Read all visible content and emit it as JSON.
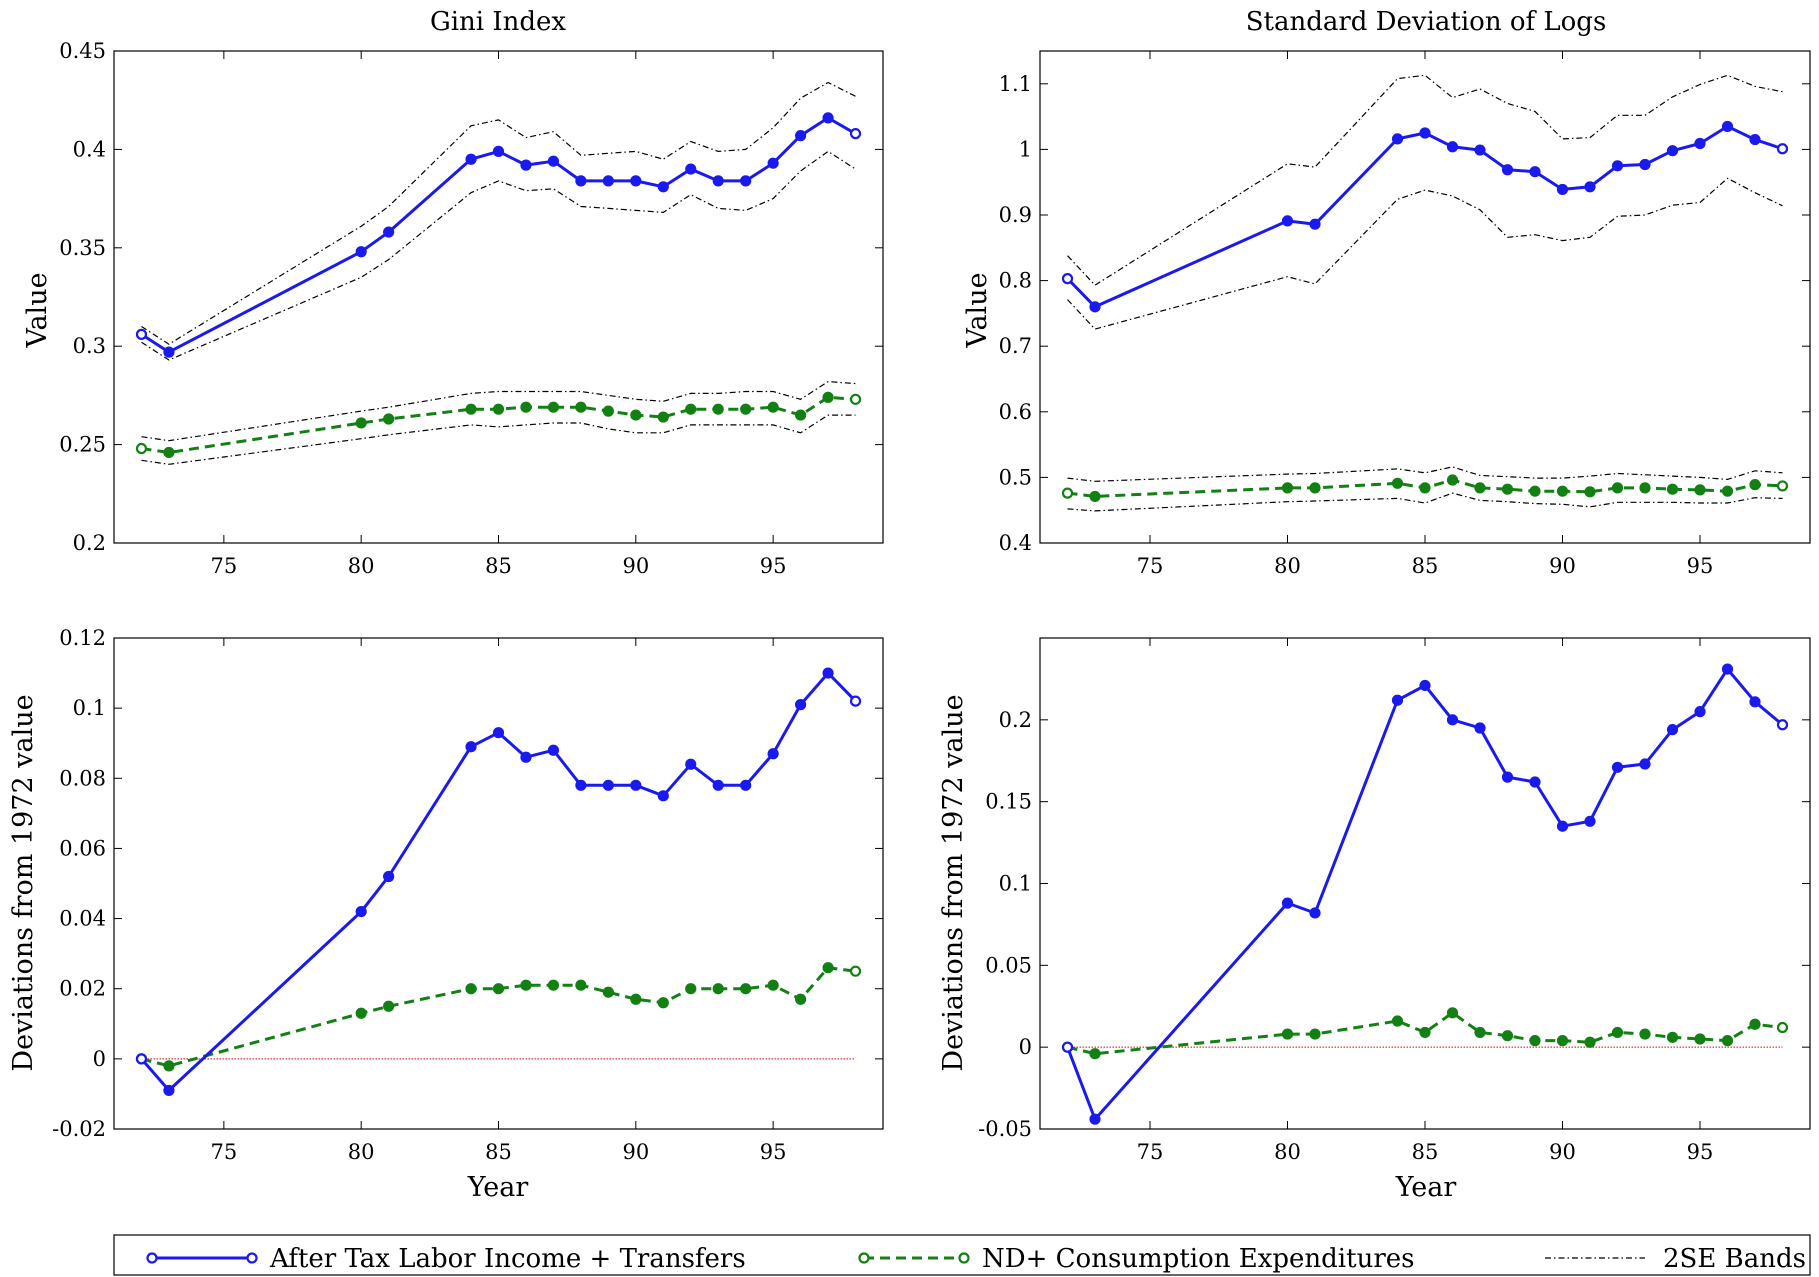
{
  "colors": {
    "income": "#1a1aee",
    "consumption": "#128012",
    "bands": "#000000",
    "zero_line": "#dd0000"
  },
  "legend": {
    "income": "After Tax Labor Income + Transfers",
    "consumption": "ND+ Consumption Expenditures",
    "bands": "2SE Bands"
  },
  "chart_data": [
    {
      "type": "line",
      "title": "Gini Index",
      "xlabel": "",
      "ylabel": "Value",
      "xlim": [
        71,
        99
      ],
      "ylim": [
        0.2,
        0.45
      ],
      "xticks": [
        75,
        80,
        85,
        90,
        95
      ],
      "xtick_labels": [
        "75",
        "80",
        "85",
        "90",
        "95"
      ],
      "yticks": [
        0.2,
        0.25,
        0.3,
        0.35,
        0.4,
        0.45
      ],
      "ytick_labels": [
        "0.2",
        "0.25",
        "0.3",
        "0.35",
        "0.4",
        "0.45"
      ],
      "series": [
        {
          "name": "After Tax Labor Income + Transfers",
          "key": "income",
          "x": [
            72,
            73,
            80,
            81,
            84,
            85,
            86,
            87,
            88,
            89,
            90,
            91,
            92,
            93,
            94,
            95,
            96,
            97,
            98
          ],
          "values": [
            0.306,
            0.297,
            0.348,
            0.358,
            0.395,
            0.399,
            0.392,
            0.394,
            0.384,
            0.384,
            0.384,
            0.381,
            0.39,
            0.384,
            0.384,
            0.393,
            0.407,
            0.416,
            0.408
          ]
        },
        {
          "name": "ND+ Consumption Expenditures",
          "key": "consumption",
          "x": [
            72,
            73,
            80,
            81,
            84,
            85,
            86,
            87,
            88,
            89,
            90,
            91,
            92,
            93,
            94,
            95,
            96,
            97,
            98
          ],
          "values": [
            0.248,
            0.246,
            0.261,
            0.263,
            0.268,
            0.268,
            0.269,
            0.269,
            0.269,
            0.267,
            0.265,
            0.264,
            0.268,
            0.268,
            0.268,
            0.269,
            0.265,
            0.274,
            0.273
          ]
        },
        {
          "name": "2SE Bands",
          "key": "bands",
          "role": "upper-income",
          "x": [
            72,
            73,
            80,
            81,
            84,
            85,
            86,
            87,
            88,
            89,
            90,
            91,
            92,
            93,
            94,
            95,
            96,
            97,
            98
          ],
          "values": [
            0.31,
            0.301,
            0.361,
            0.371,
            0.412,
            0.415,
            0.406,
            0.409,
            0.397,
            0.398,
            0.399,
            0.395,
            0.404,
            0.399,
            0.4,
            0.411,
            0.426,
            0.434,
            0.427
          ]
        },
        {
          "name": "2SE Bands",
          "key": "bands",
          "role": "lower-income",
          "x": [
            72,
            73,
            80,
            81,
            84,
            85,
            86,
            87,
            88,
            89,
            90,
            91,
            92,
            93,
            94,
            95,
            96,
            97,
            98
          ],
          "values": [
            0.302,
            0.293,
            0.335,
            0.344,
            0.378,
            0.384,
            0.379,
            0.38,
            0.371,
            0.37,
            0.369,
            0.368,
            0.377,
            0.37,
            0.369,
            0.375,
            0.389,
            0.399,
            0.39
          ]
        },
        {
          "name": "2SE Bands",
          "key": "bands",
          "role": "upper-consumption",
          "x": [
            72,
            73,
            80,
            81,
            84,
            85,
            86,
            87,
            88,
            89,
            90,
            91,
            92,
            93,
            94,
            95,
            96,
            97,
            98
          ],
          "values": [
            0.254,
            0.252,
            0.267,
            0.269,
            0.276,
            0.277,
            0.277,
            0.277,
            0.277,
            0.275,
            0.273,
            0.272,
            0.276,
            0.276,
            0.277,
            0.277,
            0.273,
            0.282,
            0.281
          ]
        },
        {
          "name": "2SE Bands",
          "key": "bands",
          "role": "lower-consumption",
          "x": [
            72,
            73,
            80,
            81,
            84,
            85,
            86,
            87,
            88,
            89,
            90,
            91,
            92,
            93,
            94,
            95,
            96,
            97,
            98
          ],
          "values": [
            0.242,
            0.24,
            0.253,
            0.255,
            0.26,
            0.259,
            0.26,
            0.261,
            0.261,
            0.258,
            0.256,
            0.256,
            0.26,
            0.26,
            0.26,
            0.26,
            0.256,
            0.265,
            0.265
          ]
        }
      ]
    },
    {
      "type": "line",
      "title": "Standard Deviation of Logs",
      "xlabel": "",
      "ylabel": "Value",
      "xlim": [
        71,
        99
      ],
      "ylim": [
        0.4,
        1.15
      ],
      "xticks": [
        75,
        80,
        85,
        90,
        95
      ],
      "xtick_labels": [
        "75",
        "80",
        "85",
        "90",
        "95"
      ],
      "yticks": [
        0.4,
        0.5,
        0.6,
        0.7,
        0.8,
        0.9,
        1.0,
        1.1
      ],
      "ytick_labels": [
        "0.4",
        "0.5",
        "0.6",
        "0.7",
        "0.8",
        "0.9",
        "1",
        "1.1"
      ],
      "series": [
        {
          "name": "After Tax Labor Income + Transfers",
          "key": "income",
          "x": [
            72,
            73,
            80,
            81,
            84,
            85,
            86,
            87,
            88,
            89,
            90,
            91,
            92,
            93,
            94,
            95,
            96,
            97,
            98
          ],
          "values": [
            0.803,
            0.76,
            0.891,
            0.886,
            1.016,
            1.025,
            1.004,
            0.999,
            0.969,
            0.966,
            0.939,
            0.943,
            0.975,
            0.977,
            0.998,
            1.009,
            1.035,
            1.015,
            1.001
          ]
        },
        {
          "name": "ND+ Consumption Expenditures",
          "key": "consumption",
          "x": [
            72,
            73,
            80,
            81,
            84,
            85,
            86,
            87,
            88,
            89,
            90,
            91,
            92,
            93,
            94,
            95,
            96,
            97,
            98
          ],
          "values": [
            0.476,
            0.471,
            0.484,
            0.484,
            0.491,
            0.484,
            0.496,
            0.484,
            0.482,
            0.479,
            0.479,
            0.478,
            0.484,
            0.484,
            0.482,
            0.481,
            0.479,
            0.489,
            0.487
          ]
        },
        {
          "name": "2SE Bands",
          "key": "bands",
          "role": "upper-income",
          "x": [
            72,
            73,
            80,
            81,
            84,
            85,
            86,
            87,
            88,
            89,
            90,
            91,
            92,
            93,
            94,
            95,
            96,
            97,
            98
          ],
          "values": [
            0.838,
            0.793,
            0.978,
            0.973,
            1.108,
            1.113,
            1.079,
            1.092,
            1.07,
            1.058,
            1.016,
            1.018,
            1.052,
            1.052,
            1.08,
            1.099,
            1.113,
            1.096,
            1.088
          ]
        },
        {
          "name": "2SE Bands",
          "key": "bands",
          "role": "lower-income",
          "x": [
            72,
            73,
            80,
            81,
            84,
            85,
            86,
            87,
            88,
            89,
            90,
            91,
            92,
            93,
            94,
            95,
            96,
            97,
            98
          ],
          "values": [
            0.771,
            0.726,
            0.806,
            0.795,
            0.924,
            0.938,
            0.929,
            0.908,
            0.866,
            0.87,
            0.861,
            0.866,
            0.898,
            0.9,
            0.915,
            0.919,
            0.956,
            0.934,
            0.914
          ]
        },
        {
          "name": "2SE Bands",
          "key": "bands",
          "role": "upper-consumption",
          "x": [
            72,
            73,
            80,
            81,
            84,
            85,
            86,
            87,
            88,
            89,
            90,
            91,
            92,
            93,
            94,
            95,
            96,
            97,
            98
          ],
          "values": [
            0.499,
            0.494,
            0.505,
            0.506,
            0.513,
            0.507,
            0.516,
            0.503,
            0.501,
            0.499,
            0.499,
            0.502,
            0.506,
            0.504,
            0.502,
            0.5,
            0.497,
            0.51,
            0.507
          ]
        },
        {
          "name": "2SE Bands",
          "key": "bands",
          "role": "lower-consumption",
          "x": [
            72,
            73,
            80,
            81,
            84,
            85,
            86,
            87,
            88,
            89,
            90,
            91,
            92,
            93,
            94,
            95,
            96,
            97,
            98
          ],
          "values": [
            0.452,
            0.449,
            0.463,
            0.464,
            0.468,
            0.461,
            0.476,
            0.465,
            0.463,
            0.46,
            0.459,
            0.455,
            0.462,
            0.462,
            0.462,
            0.461,
            0.461,
            0.469,
            0.468
          ]
        }
      ]
    },
    {
      "type": "line",
      "title": "",
      "xlabel": "Year",
      "ylabel": "Deviations from 1972 value",
      "xlim": [
        71,
        99
      ],
      "ylim": [
        -0.02,
        0.12
      ],
      "xticks": [
        75,
        80,
        85,
        90,
        95
      ],
      "xtick_labels": [
        "75",
        "80",
        "85",
        "90",
        "95"
      ],
      "yticks": [
        -0.02,
        0,
        0.02,
        0.04,
        0.06,
        0.08,
        0.1,
        0.12
      ],
      "ytick_labels": [
        "-0.02",
        "0",
        "0.02",
        "0.04",
        "0.06",
        "0.08",
        "0.1",
        "0.12"
      ],
      "zero_line": {
        "x": [
          72,
          98
        ],
        "y": 0
      },
      "series": [
        {
          "name": "After Tax Labor Income + Transfers",
          "key": "income",
          "x": [
            72,
            73,
            80,
            81,
            84,
            85,
            86,
            87,
            88,
            89,
            90,
            91,
            92,
            93,
            94,
            95,
            96,
            97,
            98
          ],
          "values": [
            0,
            -0.009,
            0.042,
            0.052,
            0.089,
            0.093,
            0.086,
            0.088,
            0.078,
            0.078,
            0.078,
            0.075,
            0.084,
            0.078,
            0.078,
            0.087,
            0.101,
            0.11,
            0.102
          ]
        },
        {
          "name": "ND+ Consumption Expenditures",
          "key": "consumption",
          "x": [
            72,
            73,
            80,
            81,
            84,
            85,
            86,
            87,
            88,
            89,
            90,
            91,
            92,
            93,
            94,
            95,
            96,
            97,
            98
          ],
          "values": [
            0,
            -0.002,
            0.013,
            0.015,
            0.02,
            0.02,
            0.021,
            0.021,
            0.021,
            0.019,
            0.017,
            0.016,
            0.02,
            0.02,
            0.02,
            0.021,
            0.017,
            0.026,
            0.025
          ]
        }
      ]
    },
    {
      "type": "line",
      "title": "",
      "xlabel": "Year",
      "ylabel": "Deviations from 1972 value",
      "xlim": [
        71,
        99
      ],
      "ylim": [
        -0.05,
        0.25
      ],
      "xticks": [
        75,
        80,
        85,
        90,
        95
      ],
      "xtick_labels": [
        "75",
        "80",
        "85",
        "90",
        "95"
      ],
      "yticks": [
        -0.05,
        0,
        0.05,
        0.1,
        0.15,
        0.2
      ],
      "ytick_labels": [
        "-0.05",
        "0",
        "0.05",
        "0.1",
        "0.15",
        "0.2"
      ],
      "zero_line": {
        "x": [
          72,
          98
        ],
        "y": 0
      },
      "series": [
        {
          "name": "After Tax Labor Income + Transfers",
          "key": "income",
          "x": [
            72,
            73,
            80,
            81,
            84,
            85,
            86,
            87,
            88,
            89,
            90,
            91,
            92,
            93,
            94,
            95,
            96,
            97,
            98
          ],
          "values": [
            0,
            -0.044,
            0.088,
            0.082,
            0.212,
            0.221,
            0.2,
            0.195,
            0.165,
            0.162,
            0.135,
            0.138,
            0.171,
            0.173,
            0.194,
            0.205,
            0.231,
            0.211,
            0.197
          ]
        },
        {
          "name": "ND+ Consumption Expenditures",
          "key": "consumption",
          "x": [
            72,
            73,
            80,
            81,
            84,
            85,
            86,
            87,
            88,
            89,
            90,
            91,
            92,
            93,
            94,
            95,
            96,
            97,
            98
          ],
          "values": [
            0,
            -0.004,
            0.008,
            0.008,
            0.016,
            0.009,
            0.021,
            0.009,
            0.007,
            0.004,
            0.004,
            0.003,
            0.009,
            0.008,
            0.006,
            0.005,
            0.004,
            0.014,
            0.012
          ]
        }
      ]
    }
  ]
}
